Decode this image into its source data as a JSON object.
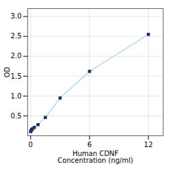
{
  "chart_data": {
    "type": "line",
    "x": [
      0.0,
      0.047,
      0.094,
      0.188,
      0.375,
      0.75,
      1.5,
      3.0,
      6.0,
      12.0
    ],
    "values": [
      0.105,
      0.13,
      0.155,
      0.175,
      0.21,
      0.28,
      0.46,
      0.95,
      1.62,
      2.55
    ],
    "xlabel": "Human CDNF\nConcentration (ng/ml)",
    "ylabel": "OD",
    "xlim": [
      -0.3,
      13.5
    ],
    "ylim": [
      0.0,
      3.2
    ],
    "xticks": [
      0,
      6,
      12
    ],
    "yticks": [
      0.5,
      {
        "value": 1.0,
        "label": "1.0"
      },
      1.5,
      {
        "value": 2.0,
        "label": "2.0"
      },
      2.5,
      {
        "value": 3.0,
        "label": "3.0"
      }
    ],
    "grid": true,
    "color": "#1a3060",
    "marker": "square"
  }
}
